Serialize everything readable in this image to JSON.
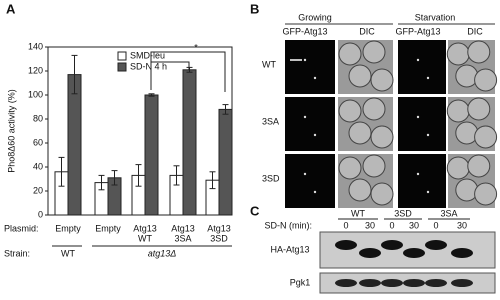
{
  "chart_data": {
    "type": "bar",
    "panel_label": "A",
    "y_label": "Pho8Δ60 activity (%)",
    "categories": [
      [
        "Empty"
      ],
      [
        "Empty"
      ],
      [
        "Atg13",
        "WT"
      ],
      [
        "Atg13",
        "3SA"
      ],
      [
        "Atg13",
        "3SD"
      ]
    ],
    "category_row_label": "Plasmid:",
    "strain_row_label": "Strain:",
    "strains": [
      "WT",
      "atg13Δ"
    ],
    "series": [
      {
        "name": "SMD-leu",
        "color": "#ffffff",
        "values": [
          36,
          27,
          33,
          33,
          29
        ],
        "errors": [
          12,
          6,
          9,
          8,
          7
        ]
      },
      {
        "name": "SD-N 4 h",
        "color": "#555555",
        "values": [
          117,
          31,
          100,
          121,
          88
        ],
        "errors": [
          16,
          6,
          1,
          2,
          4
        ]
      }
    ],
    "ylim": [
      0,
      140
    ],
    "yticks": [
      0,
      20,
      40,
      60,
      80,
      100,
      120,
      140
    ],
    "significance": "*"
  },
  "panel_b": {
    "label": "B",
    "conditions": [
      "Growing",
      "Starvation"
    ],
    "channels": [
      "GFP-Atg13",
      "DIC"
    ],
    "rows": [
      "WT",
      "3SA",
      "3SD"
    ]
  },
  "panel_c": {
    "label": "C",
    "time_label": "SD-N (min):",
    "strains": [
      "WT",
      "3SD",
      "3SA"
    ],
    "times": [
      "0",
      "30"
    ],
    "blots": [
      "HA-Atg13",
      "Pgk1"
    ]
  }
}
